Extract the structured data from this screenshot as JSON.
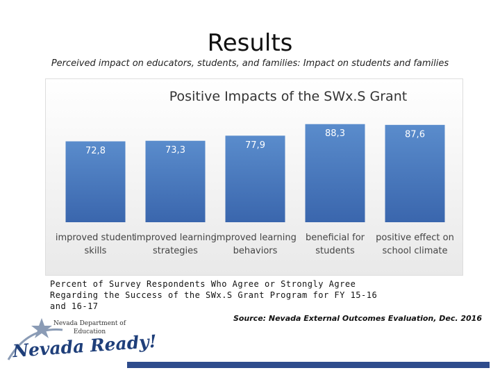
{
  "title": "Results",
  "subtitle": "Perceived impact on educators, students, and families: Impact on students and families",
  "chart_data": {
    "type": "bar",
    "title": "Positive Impacts of the SWx.S Grant",
    "categories": [
      "improved student skills",
      "improved learning strategies",
      "improved learning behaviors",
      "beneficial for students",
      "positive effect on school climate"
    ],
    "values": [
      72.8,
      73.3,
      77.9,
      88.3,
      87.6
    ],
    "value_labels": [
      "72,8",
      "73,3",
      "77,9",
      "88,3",
      "87,6"
    ],
    "color": "#4a7cc0",
    "ylim": [
      0,
      100
    ]
  },
  "caption": "Percent of Survey Respondents Who Agree or Strongly Agree Regarding the Success of the SWx.S Grant Program for FY 15-16 and 16-17",
  "source": "Source: Nevada External Outcomes Evaluation, Dec. 2016",
  "logo": {
    "org": "Nevada Department of Education",
    "brand": "Nevada Ready!"
  }
}
